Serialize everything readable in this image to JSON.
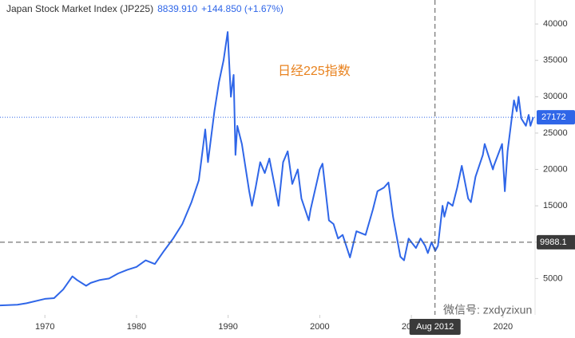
{
  "chart_data": {
    "type": "line",
    "title": "Japan Stock Market Index (JP225)",
    "quote_price": "8839.910",
    "quote_change": "+144.850 (+1.67%)",
    "annotation": "日经225指数",
    "watermark": "微信号: zxdyzixun",
    "x": [
      1965.1,
      1967,
      1968,
      1970,
      1971,
      1972,
      1973,
      1973.5,
      1974.5,
      1975,
      1976,
      1977,
      1978,
      1979,
      1980,
      1981,
      1982,
      1983,
      1984,
      1985,
      1986,
      1986.8,
      1987.5,
      1987.8,
      1988,
      1988.5,
      1989,
      1989.5,
      1989.95,
      1990.3,
      1990.6,
      1990.8,
      1991,
      1991.5,
      1992.3,
      1992.6,
      1993,
      1993.5,
      1994,
      1994.5,
      1995.5,
      1996,
      1996.5,
      1997,
      1997.6,
      1998,
      1998.8,
      1999,
      2000,
      2000.3,
      2001,
      2001.5,
      2002,
      2002.5,
      2003.3,
      2004,
      2005,
      2005.8,
      2006.3,
      2007,
      2007.5,
      2008,
      2008.8,
      2009.2,
      2009.7,
      2010,
      2010.5,
      2011,
      2011.5,
      2011.8,
      2012.2,
      2012.6,
      2012.9,
      2013.4,
      2013.6,
      2014,
      2014.5,
      2015,
      2015.5,
      2016.2,
      2016.5,
      2017,
      2017.8,
      2018,
      2018.9,
      2019,
      2019.9,
      2020.2,
      2020.5,
      2020.9,
      2021.2,
      2021.5,
      2021.7,
      2022,
      2022.5,
      2022.8,
      2023,
      2023.3
    ],
    "series": [
      {
        "name": "JP225",
        "color": "#2f66e8",
        "values": [
          1300,
          1400,
          1600,
          2200,
          2300,
          3500,
          5300,
          4800,
          4000,
          4400,
          4800,
          5000,
          5700,
          6200,
          6600,
          7500,
          7000,
          8800,
          10500,
          12500,
          15500,
          18500,
          25500,
          21000,
          23000,
          28000,
          32000,
          35000,
          38900,
          30000,
          33000,
          22000,
          26000,
          23500,
          17000,
          15000,
          17500,
          21000,
          19500,
          21500,
          15000,
          21000,
          22500,
          18000,
          20000,
          16000,
          13000,
          14500,
          20000,
          20800,
          13000,
          12500,
          10500,
          11000,
          7900,
          11500,
          11000,
          14500,
          17000,
          17500,
          18200,
          13500,
          8000,
          7500,
          10500,
          10000,
          9200,
          10500,
          9500,
          8500,
          10000,
          8800,
          9500,
          15000,
          13500,
          15500,
          15000,
          17500,
          20500,
          16000,
          15500,
          19000,
          22000,
          23500,
          20000,
          20500,
          23500,
          17000,
          22500,
          26500,
          29500,
          28000,
          30000,
          27000,
          26000,
          27500,
          26000,
          27172
        ]
      }
    ],
    "xlim": [
      1965.1,
      2023.5
    ],
    "ylim": [
      0,
      43300
    ],
    "xticks": [
      1970,
      1980,
      1990,
      2000,
      2010,
      2020
    ],
    "yticks": [
      5000,
      10000,
      15000,
      20000,
      25000,
      30000,
      35000,
      40000
    ],
    "crosshair": {
      "x": 2012.58,
      "x_label": "Aug 2012",
      "y": 9988.1
    }
  }
}
